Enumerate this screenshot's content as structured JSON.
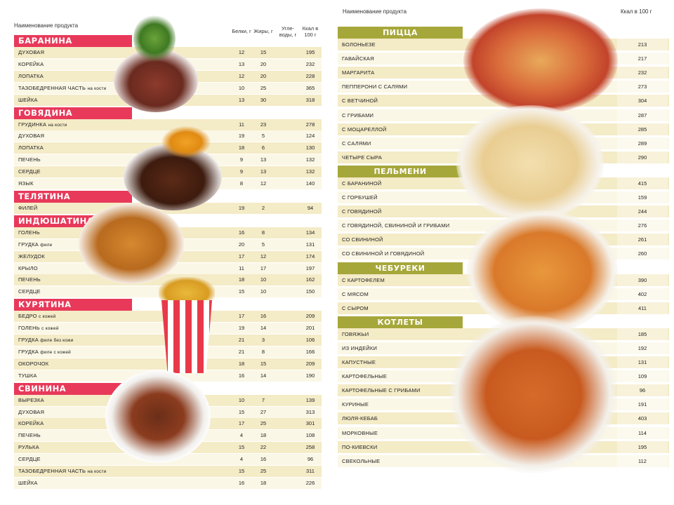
{
  "left": {
    "header": {
      "name": "Наименование продукта",
      "protein": "Белки, г",
      "fat": "Жиры, г",
      "carbs": "Угле-воды, г",
      "kcal": "Ккал в 100 г"
    },
    "sections": [
      {
        "title": "БАРАНИНА",
        "rows": [
          {
            "name": "Духовая",
            "note": "",
            "p": "12",
            "f": "15",
            "c": "",
            "k": "195"
          },
          {
            "name": "Корейка",
            "note": "",
            "p": "13",
            "f": "20",
            "c": "",
            "k": "232"
          },
          {
            "name": "Лопатка",
            "note": "",
            "p": "12",
            "f": "20",
            "c": "",
            "k": "228"
          },
          {
            "name": "Тазобедренная часть",
            "note": "на кости",
            "p": "10",
            "f": "25",
            "c": "",
            "k": "365"
          },
          {
            "name": "Шейка",
            "note": "",
            "p": "13",
            "f": "30",
            "c": "",
            "k": "318"
          }
        ]
      },
      {
        "title": "ГОВЯДИНА",
        "rows": [
          {
            "name": "Грудинка",
            "note": "на кости",
            "p": "11",
            "f": "23",
            "c": "",
            "k": "278"
          },
          {
            "name": "Духовая",
            "note": "",
            "p": "19",
            "f": "5",
            "c": "",
            "k": "124"
          },
          {
            "name": "Лопатка",
            "note": "",
            "p": "18",
            "f": "6",
            "c": "",
            "k": "130"
          },
          {
            "name": "Печень",
            "note": "",
            "p": "9",
            "f": "13",
            "c": "",
            "k": "132"
          },
          {
            "name": "Сердце",
            "note": "",
            "p": "9",
            "f": "13",
            "c": "",
            "k": "132"
          },
          {
            "name": "Язык",
            "note": "",
            "p": "8",
            "f": "12",
            "c": "",
            "k": "140"
          }
        ]
      },
      {
        "title": "ТЕЛЯТИНА",
        "rows": [
          {
            "name": "Филей",
            "note": "",
            "p": "19",
            "f": "2",
            "c": "",
            "k": "94"
          }
        ]
      },
      {
        "title": "ИНДЮШАТИНА",
        "rows": [
          {
            "name": "Голень",
            "note": "",
            "p": "16",
            "f": "8",
            "c": "",
            "k": "134"
          },
          {
            "name": "Грудка",
            "note": "филе",
            "p": "20",
            "f": "5",
            "c": "",
            "k": "131"
          },
          {
            "name": "Желудок",
            "note": "",
            "p": "17",
            "f": "12",
            "c": "",
            "k": "174"
          },
          {
            "name": "Крыло",
            "note": "",
            "p": "11",
            "f": "17",
            "c": "",
            "k": "197"
          },
          {
            "name": "Печень",
            "note": "",
            "p": "18",
            "f": "10",
            "c": "",
            "k": "162"
          },
          {
            "name": "Сердце",
            "note": "",
            "p": "15",
            "f": "10",
            "c": "",
            "k": "150"
          }
        ]
      },
      {
        "title": "КУРЯТИНА",
        "rows": [
          {
            "name": "Бедро",
            "note": "с кожей",
            "p": "17",
            "f": "16",
            "c": "",
            "k": "209"
          },
          {
            "name": "Голень",
            "note": "с кожей",
            "p": "19",
            "f": "14",
            "c": "",
            "k": "201"
          },
          {
            "name": "Грудка",
            "note": "филе без кожи",
            "p": "21",
            "f": "3",
            "c": "",
            "k": "106"
          },
          {
            "name": "Грудка",
            "note": "филе с кожей",
            "p": "21",
            "f": "8",
            "c": "",
            "k": "166"
          },
          {
            "name": "Окорочок",
            "note": "",
            "p": "18",
            "f": "15",
            "c": "",
            "k": "209"
          },
          {
            "name": "Тушка",
            "note": "",
            "p": "16",
            "f": "14",
            "c": "",
            "k": "190"
          }
        ]
      },
      {
        "title": "СВИНИНА",
        "rows": [
          {
            "name": "Вырезка",
            "note": "",
            "p": "10",
            "f": "7",
            "c": "",
            "k": "139"
          },
          {
            "name": "Духовая",
            "note": "",
            "p": "15",
            "f": "27",
            "c": "",
            "k": "313"
          },
          {
            "name": "Корейка",
            "note": "",
            "p": "17",
            "f": "25",
            "c": "",
            "k": "301"
          },
          {
            "name": "Печень",
            "note": "",
            "p": "4",
            "f": "18",
            "c": "",
            "k": "108"
          },
          {
            "name": "Рулька",
            "note": "",
            "p": "15",
            "f": "22",
            "c": "",
            "k": "258"
          },
          {
            "name": "Сердце",
            "note": "",
            "p": "4",
            "f": "16",
            "c": "",
            "k": "96"
          },
          {
            "name": "Тазобедренная часть",
            "note": "на кости",
            "p": "15",
            "f": "25",
            "c": "",
            "k": "311"
          },
          {
            "name": "Шейка",
            "note": "",
            "p": "16",
            "f": "18",
            "c": "",
            "k": "226"
          }
        ]
      }
    ]
  },
  "right": {
    "header": {
      "name": "Наименование продукта",
      "kcal": "Ккал в 100 г"
    },
    "sections": [
      {
        "title": "ПИЦЦА",
        "rows": [
          {
            "name": "Болоньезе",
            "k": "213"
          },
          {
            "name": "Гавайская",
            "k": "217"
          },
          {
            "name": "Маргарита",
            "k": "232"
          },
          {
            "name": "Пепперони с салями",
            "k": "273"
          },
          {
            "name": "С ветчиной",
            "k": "304"
          },
          {
            "name": "С грибами",
            "k": "287"
          },
          {
            "name": "С моцареллой",
            "k": "285"
          },
          {
            "name": "С салями",
            "k": "289"
          },
          {
            "name": "Четыре сыра",
            "k": "290"
          }
        ]
      },
      {
        "title": "ПЕЛЬМЕНИ",
        "rows": [
          {
            "name": "С бараниной",
            "k": "415"
          },
          {
            "name": "С горбушей",
            "k": "159"
          },
          {
            "name": "С говядиной",
            "k": "244"
          },
          {
            "name": "С говядиной, свининой и грибами",
            "k": "276"
          },
          {
            "name": "Со свининой",
            "k": "261"
          },
          {
            "name": "Со свининой и говядиной",
            "k": "260"
          }
        ]
      },
      {
        "title": "ЧЕБУРЕКИ",
        "rows": [
          {
            "name": "С картофелем",
            "k": "390"
          },
          {
            "name": "С мясом",
            "k": "402"
          },
          {
            "name": "С сыром",
            "k": "411"
          }
        ]
      },
      {
        "title": "КОТЛЕТЫ",
        "rows": [
          {
            "name": "Говяжьи",
            "k": "185"
          },
          {
            "name": "Из индейки",
            "k": "192"
          },
          {
            "name": "Капустные",
            "k": "131"
          },
          {
            "name": "Картофельные",
            "k": "109"
          },
          {
            "name": "Картофельные с грибами",
            "k": "96"
          },
          {
            "name": "Куриные",
            "k": "191"
          },
          {
            "name": "Люля-кебаб",
            "k": "403"
          },
          {
            "name": "Морковные",
            "k": "114"
          },
          {
            "name": "По-киевски",
            "k": "195"
          },
          {
            "name": "Свекольные",
            "k": "112"
          }
        ]
      }
    ]
  },
  "colors": {
    "left_section": "#e8395a",
    "right_section": "#a6a73a",
    "row_odd": "#f4ebc7",
    "row_even": "#fbf7e6"
  }
}
